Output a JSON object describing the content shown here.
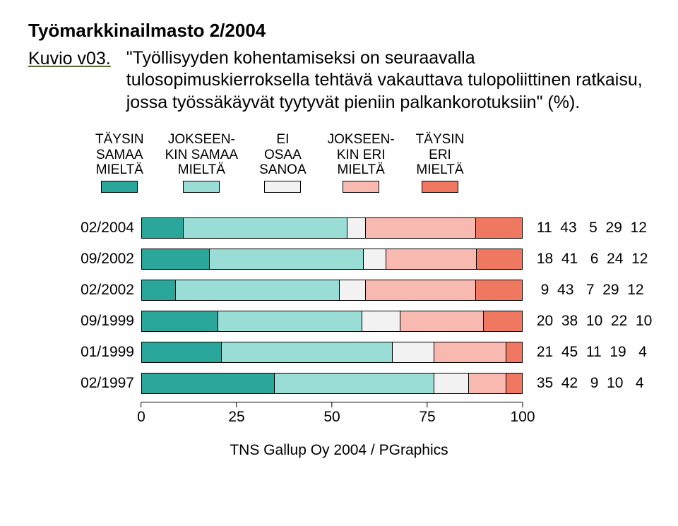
{
  "title": "Työmarkkinailmasto 2/2004",
  "kuvio": "Kuvio v03.",
  "question": "\"Työllisyyden kohentamiseksi on seuraavalla tulosopimuskierroksella tehtävä vakauttava tulopoliittinen ratkaisu, jossa työssäkäyvät tyytyvät pieniin palkankorotuksiin\" (%).",
  "legend": [
    {
      "l1": "TÄYSIN",
      "l2": "SAMAA",
      "l3": "MIELTÄ",
      "color": "#2aa69a"
    },
    {
      "l1": "JOKSEEN-",
      "l2": "KIN SAMAA",
      "l3": "MIELTÄ",
      "color": "#9adcd6"
    },
    {
      "l1": "EI",
      "l2": "OSAA",
      "l3": "SANOA",
      "color": "#f2f2f2"
    },
    {
      "l1": "JOKSEEN-",
      "l2": "KIN ERI",
      "l3": "MIELTÄ",
      "color": "#f7b9b0"
    },
    {
      "l1": "TÄYSIN",
      "l2": "ERI",
      "l3": "MIELTÄ",
      "color": "#f07860"
    }
  ],
  "colors": [
    "#2aa69a",
    "#9adcd6",
    "#f2f2f2",
    "#f7b9b0",
    "#f07860"
  ],
  "rows": [
    {
      "label": "02/2004",
      "values": [
        11,
        43,
        5,
        29,
        12
      ]
    },
    {
      "label": "09/2002",
      "values": [
        18,
        41,
        6,
        24,
        12
      ]
    },
    {
      "label": "02/2002",
      "values": [
        9,
        43,
        7,
        29,
        12
      ]
    },
    {
      "label": "09/1999",
      "values": [
        20,
        38,
        10,
        22,
        10
      ]
    },
    {
      "label": "01/1999",
      "values": [
        21,
        45,
        11,
        19,
        4
      ]
    },
    {
      "label": "02/1997",
      "values": [
        35,
        42,
        9,
        10,
        4
      ]
    }
  ],
  "xaxis": {
    "min": 0,
    "max": 100,
    "ticks": [
      0,
      25,
      50,
      75,
      100
    ]
  },
  "footer": "TNS Gallup Oy 2004 / PGraphics",
  "chart": {
    "type": "stacked-bar",
    "bar_border": "#000000",
    "background": "#ffffff",
    "label_fontsize": 21,
    "legend_fontsize": 19,
    "title_fontsize": 26
  }
}
